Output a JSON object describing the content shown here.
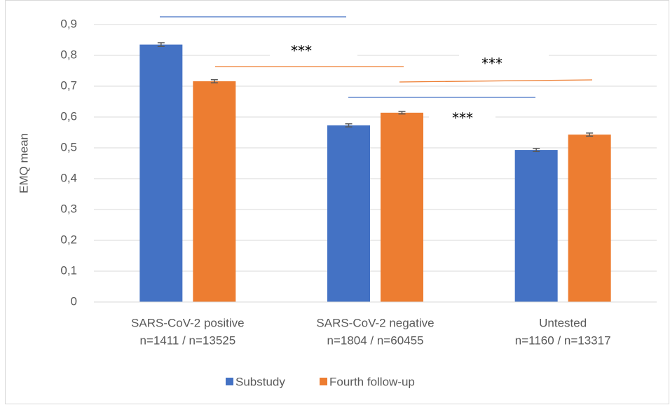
{
  "chart_data": {
    "type": "bar",
    "y_label": "EMQ mean",
    "categories": [
      [
        "SARS-CoV-2 positive",
        "n=1411 / n=13525"
      ],
      [
        "SARS-CoV-2 negative",
        "n=1804 / n=60455"
      ],
      [
        "Untested",
        "n=1160 / n=13317"
      ]
    ],
    "series": [
      {
        "name": "Substudy",
        "color": "#4472c4",
        "values": [
          0.835,
          0.573,
          0.493
        ],
        "errors": [
          0.006,
          0.005,
          0.005
        ]
      },
      {
        "name": "Fourth follow-up",
        "color": "#ed7d31",
        "values": [
          0.716,
          0.614,
          0.543
        ],
        "errors": [
          0.005,
          0.004,
          0.005
        ]
      }
    ],
    "ylim": [
      0,
      0.9
    ],
    "yticks": [
      0,
      {
        "value": 0.1,
        "label": "0,1"
      },
      {
        "value": 0.2,
        "label": "0,2"
      },
      {
        "value": 0.3,
        "label": "0,3"
      },
      {
        "value": 0.4,
        "label": "0,4"
      },
      {
        "value": 0.5,
        "label": "0,5"
      },
      {
        "value": 0.6,
        "label": "0,6"
      },
      {
        "value": 0.7,
        "label": "0,7"
      },
      {
        "value": 0.8,
        "label": "0,8"
      },
      {
        "value": 0.9,
        "label": "0,9"
      }
    ],
    "grid": true,
    "legend": "bottom",
    "annotations": [
      "***",
      "***",
      "***"
    ]
  }
}
